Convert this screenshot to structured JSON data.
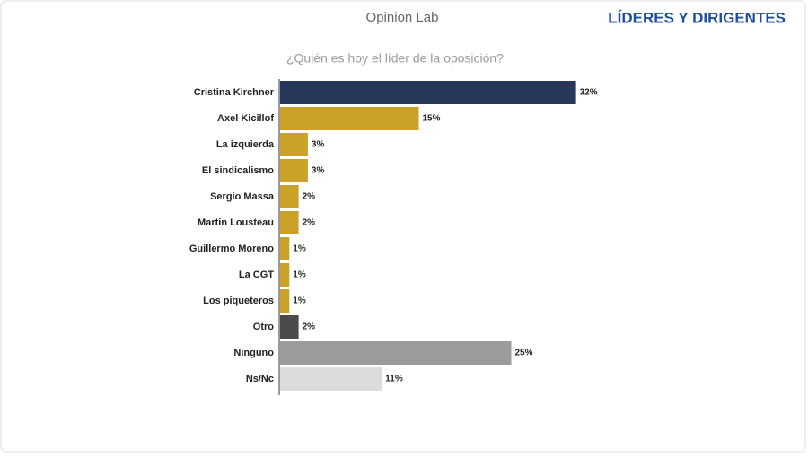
{
  "brand": "Opinion Lab",
  "section": "LÍDERES Y DIRIGENTES",
  "chart_data": {
    "type": "bar",
    "orientation": "horizontal",
    "title": "¿Quién es hoy el líder de la oposición?",
    "categories": [
      "Cristina Kirchner",
      "Axel Kicillof",
      "La izquierda",
      "El sindicalismo",
      "Sergio Massa",
      "Martin Lousteau",
      "Guillermo Moreno",
      "La CGT",
      "Los piqueteros",
      "Otro",
      "Ninguno",
      "Ns/Nc"
    ],
    "values": [
      32,
      15,
      3,
      3,
      2,
      2,
      1,
      1,
      1,
      2,
      25,
      11
    ],
    "value_labels": [
      "32%",
      "15%",
      "3%",
      "3%",
      "2%",
      "2%",
      "1%",
      "1%",
      "1%",
      "2%",
      "25%",
      "11%"
    ],
    "colors": [
      "#26375a",
      "#c9a227",
      "#c9a227",
      "#c9a227",
      "#c9a227",
      "#c9a227",
      "#c9a227",
      "#c9a227",
      "#c9a227",
      "#4a4a4a",
      "#9b9b9b",
      "#dcdcdc"
    ]
  }
}
